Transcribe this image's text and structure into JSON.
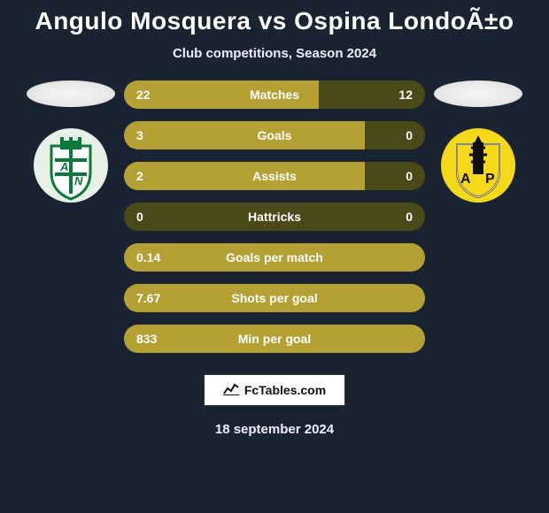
{
  "title": "Angulo Mosquera vs Ospina LondoÃ±o",
  "subtitle": "Club competitions, Season 2024",
  "date": "18 september 2024",
  "logo_text": "FcTables.com",
  "colors": {
    "bg": "#1a2332",
    "bar_dark": "#4a4a18",
    "bar_light": "#b5a033",
    "text": "#ffffff"
  },
  "crest_left": {
    "bg": "#e8f0e8",
    "primary": "#0a7a3a",
    "text": "A N"
  },
  "crest_right": {
    "bg": "#111111",
    "primary": "#f5d817",
    "text": "A P"
  },
  "bars": [
    {
      "label": "Matches",
      "left": "22",
      "right": "12",
      "left_pct": 64.7,
      "right_pct": 35.3
    },
    {
      "label": "Goals",
      "left": "3",
      "right": "0",
      "left_pct": 80,
      "right_pct": 20
    },
    {
      "label": "Assists",
      "left": "2",
      "right": "0",
      "left_pct": 80,
      "right_pct": 20
    },
    {
      "label": "Hattricks",
      "left": "0",
      "right": "0",
      "left_pct": 0,
      "right_pct": 100
    },
    {
      "label": "Goals per match",
      "left": "0.14",
      "right": "",
      "left_pct": 100,
      "right_pct": 0
    },
    {
      "label": "Shots per goal",
      "left": "7.67",
      "right": "",
      "left_pct": 100,
      "right_pct": 0
    },
    {
      "label": "Min per goal",
      "left": "833",
      "right": "",
      "left_pct": 100,
      "right_pct": 0
    }
  ]
}
